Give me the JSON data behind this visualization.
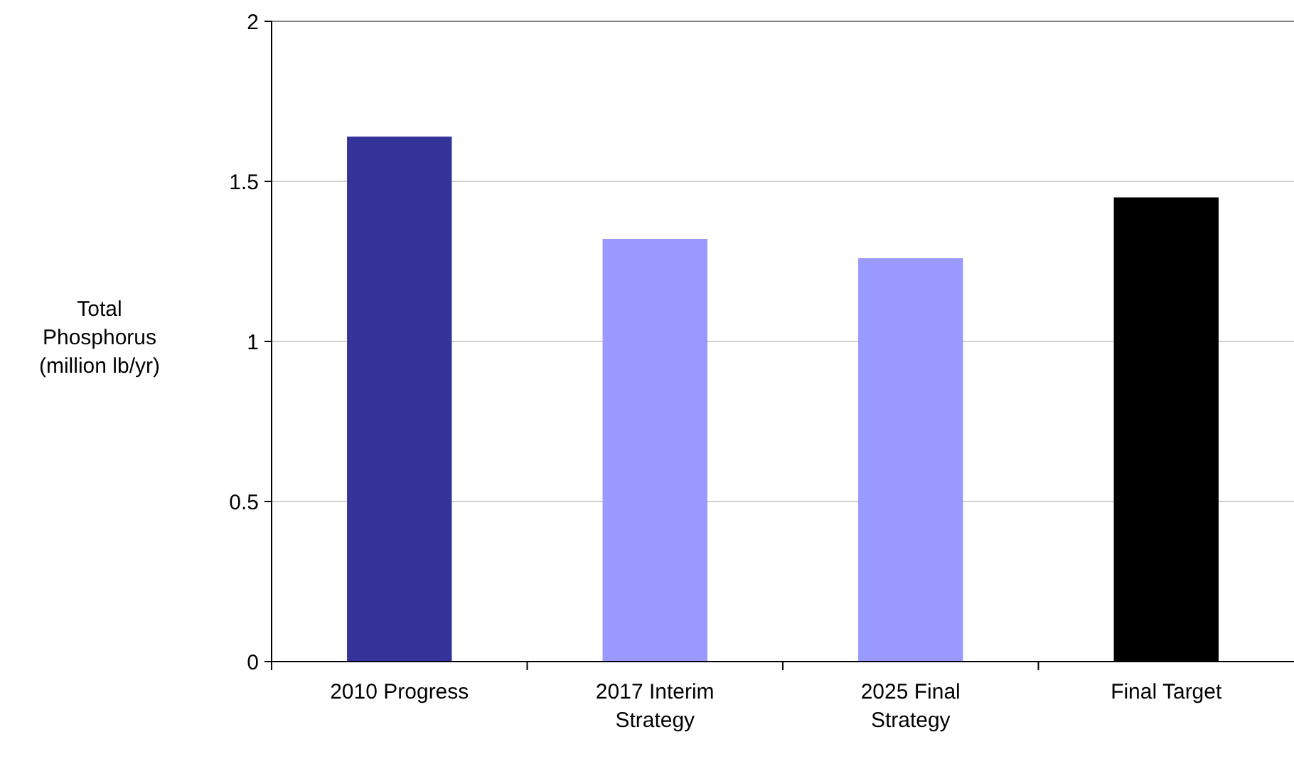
{
  "chart_data": {
    "type": "bar",
    "ylabel": "Total Phosphorus (million lb/yr)",
    "categories": [
      "2010 Progress",
      "2017 Interim Strategy",
      "2025 Final Strategy",
      "Final Target"
    ],
    "values": [
      1.64,
      1.32,
      1.26,
      1.45
    ],
    "colors": [
      "#333399",
      "#9999ff",
      "#9999ff",
      "#000000"
    ],
    "ylim": [
      0,
      2
    ],
    "yticks": [
      0,
      0.5,
      1,
      1.5,
      2
    ],
    "grid": "y"
  }
}
